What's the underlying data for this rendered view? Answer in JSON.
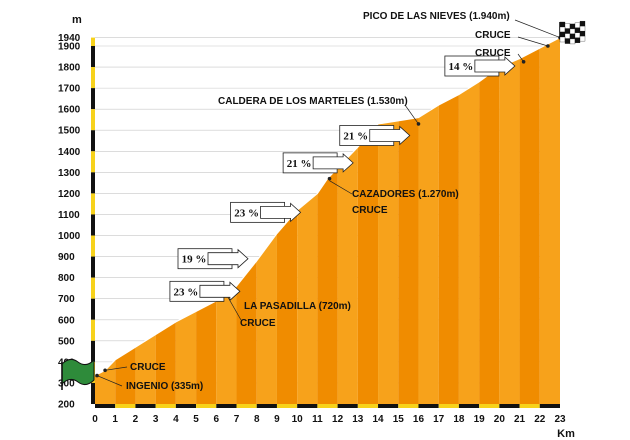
{
  "chart_data": {
    "type": "area",
    "y_unit": "m",
    "x_unit": "Km",
    "xlim": [
      0,
      23
    ],
    "ylim": [
      200,
      1940
    ],
    "x_ticks": [
      "0",
      "1",
      "2",
      "3",
      "4",
      "5",
      "6",
      "7",
      "8",
      "9",
      "10",
      "11",
      "12",
      "13",
      "14",
      "15",
      "16",
      "17",
      "18",
      "19",
      "20",
      "21",
      "22",
      "23"
    ],
    "y_ticks": [
      "1940",
      "1900",
      "1800",
      "1700",
      "1600",
      "1500",
      "1400",
      "1300",
      "1200",
      "1100",
      "1000",
      "900",
      "800",
      "700",
      "600",
      "500",
      "400",
      "300",
      "200"
    ],
    "profile": [
      {
        "x": 0,
        "y": 335
      },
      {
        "x": 0.5,
        "y": 360
      },
      {
        "x": 1,
        "y": 410
      },
      {
        "x": 2,
        "y": 470
      },
      {
        "x": 3,
        "y": 530
      },
      {
        "x": 4,
        "y": 590
      },
      {
        "x": 5,
        "y": 640
      },
      {
        "x": 6,
        "y": 690
      },
      {
        "x": 6.5,
        "y": 720
      },
      {
        "x": 7,
        "y": 760
      },
      {
        "x": 8,
        "y": 880
      },
      {
        "x": 9,
        "y": 1010
      },
      {
        "x": 10,
        "y": 1120
      },
      {
        "x": 11,
        "y": 1200
      },
      {
        "x": 11.5,
        "y": 1270
      },
      {
        "x": 12,
        "y": 1320
      },
      {
        "x": 13,
        "y": 1420
      },
      {
        "x": 14,
        "y": 1530
      },
      {
        "x": 15,
        "y": 1545
      },
      {
        "x": 16,
        "y": 1560
      },
      {
        "x": 17,
        "y": 1620
      },
      {
        "x": 18,
        "y": 1670
      },
      {
        "x": 19,
        "y": 1730
      },
      {
        "x": 20,
        "y": 1800
      },
      {
        "x": 21,
        "y": 1840
      },
      {
        "x": 22,
        "y": 1890
      },
      {
        "x": 23,
        "y": 1940
      }
    ],
    "gradients": [
      {
        "label": "23 %",
        "x": 4.2,
        "y": 735
      },
      {
        "label": "19 %",
        "x": 4.6,
        "y": 890
      },
      {
        "label": "23 %",
        "x": 7.2,
        "y": 1110
      },
      {
        "label": "21 %",
        "x": 9.8,
        "y": 1345
      },
      {
        "label": "21 %",
        "x": 12.6,
        "y": 1475
      },
      {
        "label": "14 %",
        "x": 17.8,
        "y": 1805
      }
    ],
    "annotations": [
      {
        "label": "PICO DE LAS NIEVES (1.940m)",
        "x": 23,
        "y": 1940
      },
      {
        "label": "CRUCE",
        "x": 22.4,
        "y": 1900
      },
      {
        "label": "CRUCE",
        "x": 21.2,
        "y": 1825
      },
      {
        "label": "CALDERA DE LOS MARTELES (1.530m)",
        "x": 16.0,
        "y": 1530
      },
      {
        "label": "CAZADORES (1.270m)",
        "x": 11.6,
        "y": 1270
      },
      {
        "label": "CRUCE",
        "x": 11.6,
        "y": 1270
      },
      {
        "label": "LA PASADILLA (720m)",
        "x": 6.5,
        "y": 720
      },
      {
        "label": "CRUCE",
        "x": 6.5,
        "y": 720
      },
      {
        "label": "CRUCE",
        "x": 0.5,
        "y": 360
      },
      {
        "label": "INGENIO (335m)",
        "x": 0,
        "y": 335
      }
    ],
    "colors": {
      "fill_light": "#f7a21b",
      "fill_dark": "#f08c00",
      "axis_stripe_black": "#111111",
      "axis_stripe_yellow": "#f7d21b",
      "start_flag": "#2e8b3a",
      "box_border": "#222222"
    }
  }
}
